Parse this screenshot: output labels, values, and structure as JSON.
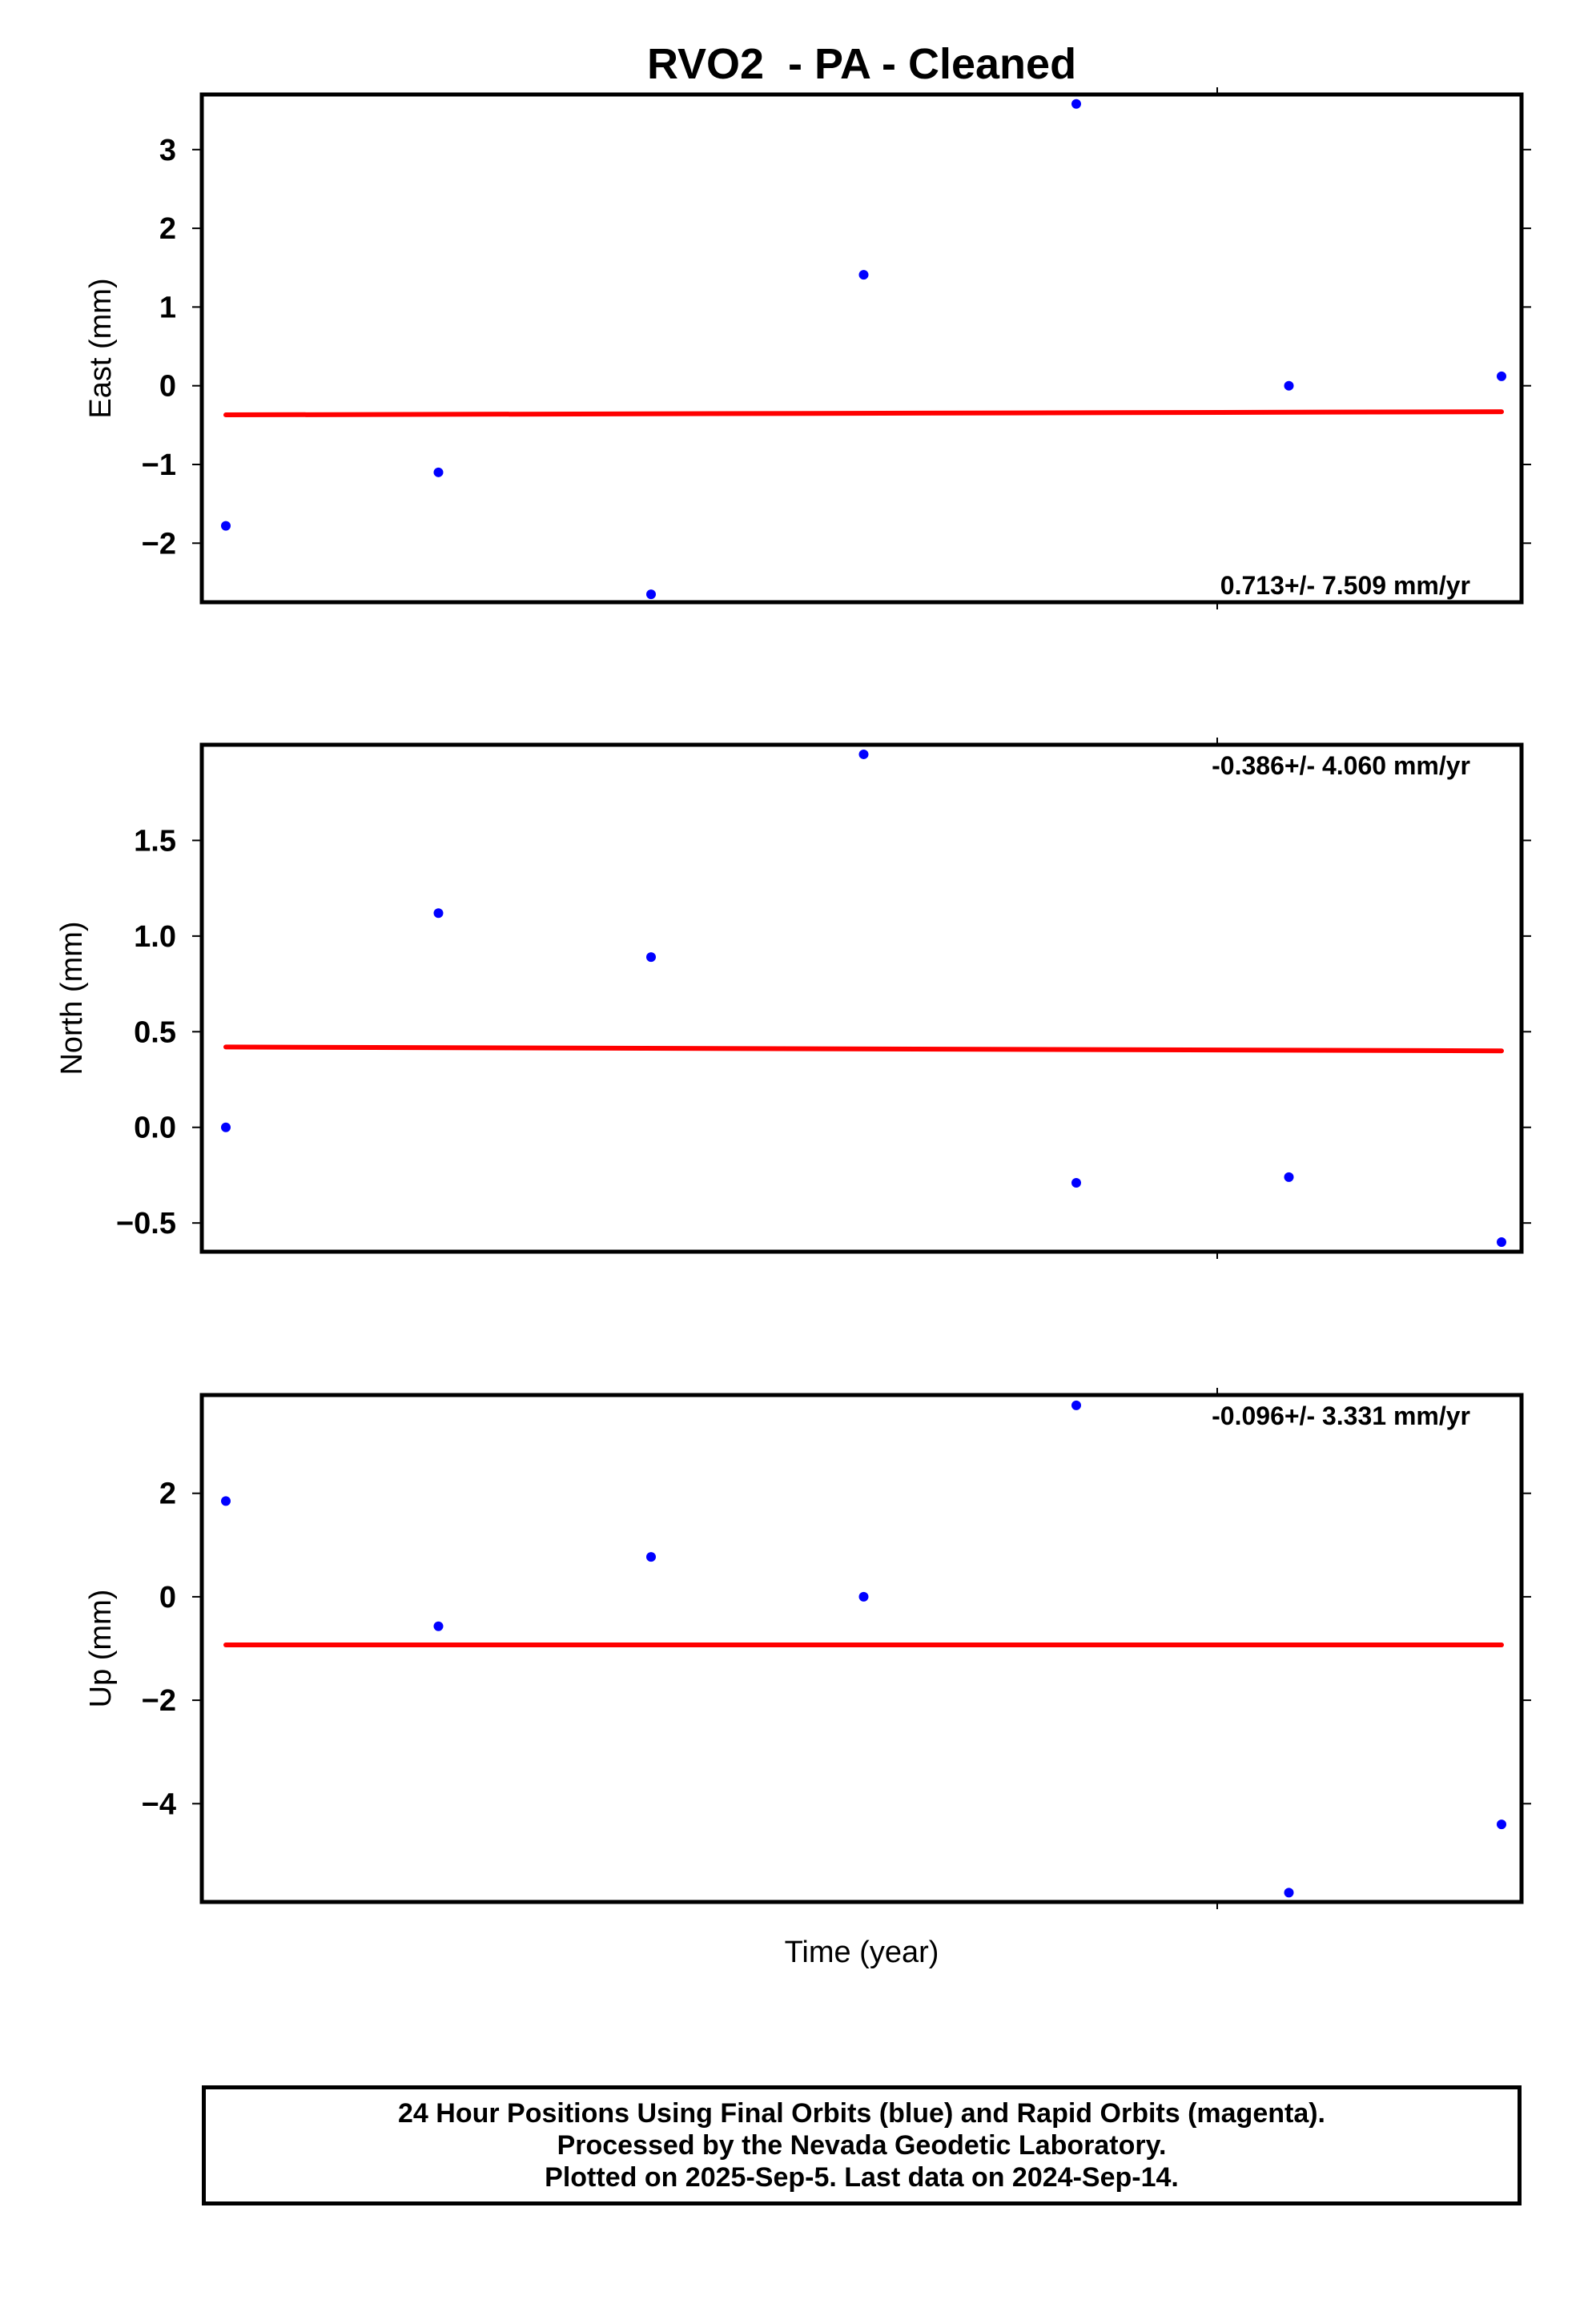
{
  "colors": {
    "data_points": "#0000ff",
    "trend_line": "#ff0000",
    "axes": "#000000"
  },
  "chart_data": [
    {
      "type": "scatter",
      "title": "RVO2  - PA - Cleaned",
      "ylabel": "East (mm)",
      "xlabel": "",
      "ylim": [
        -2.75,
        3.7
      ],
      "yticks": [
        -2,
        -1,
        0,
        1,
        2,
        3
      ],
      "ytick_labels": [
        "−2",
        "−1",
        "0",
        "1",
        "2",
        "3"
      ],
      "points": [
        {
          "x": 0,
          "y": -1.78
        },
        {
          "x": 1,
          "y": -1.1
        },
        {
          "x": 2,
          "y": -2.65
        },
        {
          "x": 3,
          "y": 1.41
        },
        {
          "x": 4,
          "y": 3.58
        },
        {
          "x": 5,
          "y": 0.0
        },
        {
          "x": 6,
          "y": 0.12
        }
      ],
      "trend": {
        "y_start": -0.37,
        "y_end": -0.33
      },
      "annotation": "0.713+/- 7.509 mm/yr",
      "grid": false
    },
    {
      "type": "scatter",
      "title": "",
      "ylabel": "North (mm)",
      "xlabel": "",
      "ylim": [
        -0.65,
        2.0
      ],
      "yticks": [
        -0.5,
        0.0,
        0.5,
        1.0,
        1.5
      ],
      "ytick_labels": [
        "−0.5",
        "0.0",
        "0.5",
        "1.0",
        "1.5"
      ],
      "points": [
        {
          "x": 0,
          "y": 0.0
        },
        {
          "x": 1,
          "y": 1.12
        },
        {
          "x": 2,
          "y": 0.89
        },
        {
          "x": 3,
          "y": 1.95
        },
        {
          "x": 4,
          "y": -0.29
        },
        {
          "x": 5,
          "y": -0.26
        },
        {
          "x": 6,
          "y": -0.6
        }
      ],
      "trend": {
        "y_start": 0.42,
        "y_end": 0.4
      },
      "annotation": "-0.386+/- 4.060 mm/yr",
      "grid": false
    },
    {
      "type": "scatter",
      "title": "",
      "ylabel": "Up (mm)",
      "xlabel": "Time (year)",
      "ylim": [
        -5.9,
        3.9
      ],
      "yticks": [
        -4,
        -2,
        0,
        2
      ],
      "ytick_labels": [
        "−4",
        "−2",
        "0",
        "2"
      ],
      "points": [
        {
          "x": 0,
          "y": 1.85
        },
        {
          "x": 1,
          "y": -0.57
        },
        {
          "x": 2,
          "y": 0.77
        },
        {
          "x": 3,
          "y": 0.0
        },
        {
          "x": 4,
          "y": 3.7
        },
        {
          "x": 5,
          "y": -5.72
        },
        {
          "x": 6,
          "y": -4.4
        }
      ],
      "trend": {
        "y_start": -0.93,
        "y_end": -0.93
      },
      "annotation": "-0.096+/- 3.331 mm/yr",
      "grid": false
    }
  ],
  "footer": {
    "line1": "24 Hour Positions Using Final Orbits (blue) and Rapid Orbits (magenta).",
    "line2": "Processed by the Nevada Geodetic Laboratory.",
    "line3": "Plotted on 2025-Sep-5. Last data on 2024-Sep-14."
  }
}
